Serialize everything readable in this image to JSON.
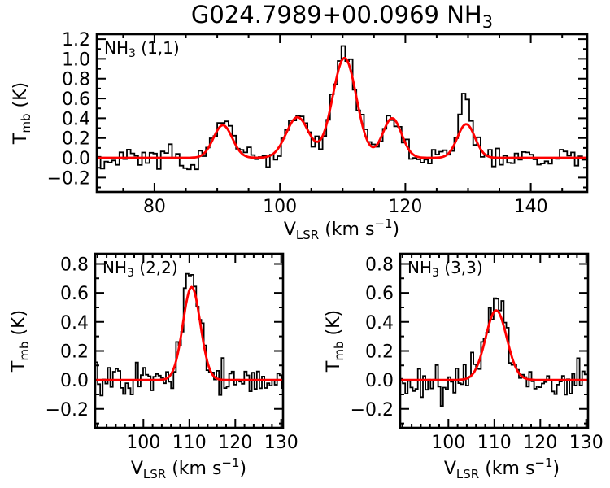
{
  "title": {
    "main": "G024.7989+00.0969 NH",
    "sub": "3"
  },
  "chart_data": {
    "type": "line",
    "description": "Ammonia inversion-line spectra (black histogram) with Gaussian fits (red curve) toward source G024.7989+00.0969",
    "xlabel": {
      "pre": "V",
      "sub": "LSR",
      "mid": " (km s",
      "sup": "−1",
      "post": ")"
    },
    "ylabel": {
      "pre": "T",
      "sub": "mb",
      "post": " (K)"
    },
    "styles": {
      "data_color": "#000000",
      "fit_color": "#ff0000",
      "background": "#ffffff",
      "axis_color": "#000000"
    },
    "panels": [
      {
        "id": "nh3_11",
        "line_label": {
          "pre": "NH",
          "sub": "3",
          "post": " (1,1)"
        },
        "x_range": [
          70.8,
          149.0
        ],
        "y_range": [
          -0.345,
          1.25
        ],
        "x_ticks": [
          80,
          100,
          120,
          140
        ],
        "x_tick_labels": [
          "80",
          "100",
          "120",
          "140"
        ],
        "x_minor_step": 5,
        "y_ticks": [
          -0.2,
          0.0,
          0.2,
          0.4,
          0.6,
          0.8,
          1.0,
          1.2
        ],
        "y_tick_labels": [
          "−0.2",
          "0.0",
          "0.2",
          "0.4",
          "0.6",
          "0.8",
          "1.0",
          "1.2"
        ],
        "y_minor_step": 0.1,
        "baseline_K": 0.0,
        "channel_width_kms": 0.6,
        "noise_rms_K": 0.055,
        "noise_seed": 101,
        "fit_gaussians": [
          {
            "center_kms": 90.9,
            "amp_K": 0.33,
            "sigma_kms": 1.5
          },
          {
            "center_kms": 102.8,
            "amp_K": 0.41,
            "sigma_kms": 1.8
          },
          {
            "center_kms": 110.3,
            "amp_K": 1.01,
            "sigma_kms": 1.9
          },
          {
            "center_kms": 117.9,
            "amp_K": 0.4,
            "sigma_kms": 1.5
          },
          {
            "center_kms": 129.7,
            "amp_K": 0.34,
            "sigma_kms": 1.4
          }
        ],
        "data_extra_gaussians": [
          {
            "center_kms": 129.5,
            "amp_K": 0.24,
            "sigma_kms": 0.7
          },
          {
            "center_kms": 110.2,
            "amp_K": 0.05,
            "sigma_kms": 1.0
          },
          {
            "center_kms": 102.9,
            "amp_K": 0.07,
            "sigma_kms": 0.8
          }
        ]
      },
      {
        "id": "nh3_22",
        "line_label": {
          "pre": "NH",
          "sub": "3",
          "post": " (2,2)"
        },
        "x_range": [
          89.5,
          130.4
        ],
        "y_range": [
          -0.33,
          0.87
        ],
        "x_ticks": [
          100,
          110,
          120,
          130
        ],
        "x_tick_labels": [
          "100",
          "110",
          "120",
          "130"
        ],
        "x_minor_step": 2,
        "y_ticks": [
          -0.2,
          0.0,
          0.2,
          0.4,
          0.6,
          0.8
        ],
        "y_tick_labels": [
          "−0.2",
          "0.0",
          "0.2",
          "0.4",
          "0.6",
          "0.8"
        ],
        "y_minor_step": 0.1,
        "baseline_K": 0.0,
        "channel_width_kms": 0.55,
        "noise_rms_K": 0.062,
        "noise_seed": 202,
        "fit_gaussians": [
          {
            "center_kms": 110.5,
            "amp_K": 0.64,
            "sigma_kms": 1.9
          }
        ],
        "data_extra_gaussians": [
          {
            "center_kms": 110.4,
            "amp_K": 0.12,
            "sigma_kms": 0.9
          }
        ]
      },
      {
        "id": "nh3_33",
        "line_label": {
          "pre": "NH",
          "sub": "3",
          "post": " (3,3)"
        },
        "x_range": [
          89.5,
          130.4
        ],
        "y_range": [
          -0.33,
          0.87
        ],
        "x_ticks": [
          100,
          110,
          120,
          130
        ],
        "x_tick_labels": [
          "100",
          "110",
          "120",
          "130"
        ],
        "x_minor_step": 2,
        "y_ticks": [
          -0.2,
          0.0,
          0.2,
          0.4,
          0.6,
          0.8
        ],
        "y_tick_labels": [
          "−0.2",
          "0.0",
          "0.2",
          "0.4",
          "0.6",
          "0.8"
        ],
        "y_minor_step": 0.1,
        "baseline_K": 0.0,
        "channel_width_kms": 0.55,
        "noise_rms_K": 0.065,
        "noise_seed": 303,
        "fit_gaussians": [
          {
            "center_kms": 110.4,
            "amp_K": 0.48,
            "sigma_kms": 2.3
          }
        ],
        "data_extra_gaussians": [
          {
            "center_kms": 109.9,
            "amp_K": 0.08,
            "sigma_kms": 1.2
          }
        ]
      }
    ]
  }
}
